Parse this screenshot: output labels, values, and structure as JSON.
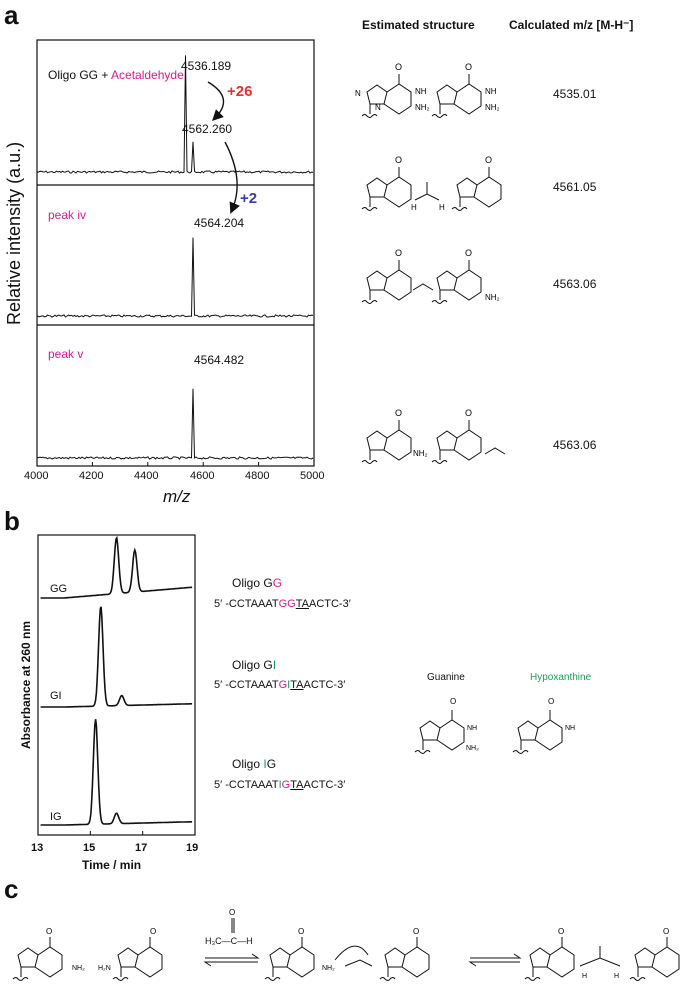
{
  "panel_a": {
    "letter": "a",
    "header_structure": "Estimated structure",
    "header_mz": "Calculated m/z [M-H⁻]",
    "ylabel": "Relative intensity (a.u.)",
    "xlabel": "m/z",
    "trace1_label_part1": "Oligo GG + ",
    "trace1_label_part2": "Acetaldehyde",
    "trace2_label": "peak iv",
    "trace3_label": "peak v",
    "peak1": "4536.189",
    "peak2": "4562.260",
    "peak3": "4564.204",
    "peak4": "4564.482",
    "delta1": "+26",
    "delta2": "+2",
    "calc": [
      "4535.01",
      "4561.05",
      "4563.06",
      "4563.06"
    ],
    "colors": {
      "magenta": "#e0198a",
      "red": "#e0332b",
      "blue": "#3d3aa8"
    }
  },
  "panel_b": {
    "letter": "b",
    "ylabel": "Absorbance at 260 nm",
    "xlabel": "Time / min",
    "trace_labels": [
      "GG",
      "GI",
      "IG"
    ],
    "oligo_titles": [
      {
        "pre": "Oligo G",
        "hi": "G",
        "post": ""
      },
      {
        "pre": "Oligo G",
        "hi": "I",
        "post": ""
      },
      {
        "pre": "Oligo ",
        "hi": "I",
        "post": "G"
      }
    ],
    "seqs": [
      {
        "pre": "5′ -CCTAAAT",
        "a": "G",
        "b": "G",
        "u": "TA",
        "post": "ACTC-3′"
      },
      {
        "pre": "5′ -CCTAAAT",
        "a": "G",
        "b": "I",
        "u": "TA",
        "post": "ACTC-3′"
      },
      {
        "pre": "5′ -CCTAAAT",
        "a": "I",
        "b": "G",
        "u": "TA",
        "post": "ACTC-3′"
      }
    ],
    "guanine_label": "Guanine",
    "hypoxanthine_label": "Hypoxanthine",
    "colors": {
      "magenta": "#e0198a",
      "green": "#16a05a"
    }
  },
  "panel_c": {
    "letter": "c",
    "reagent": "H₃C—C—H"
  },
  "chart_data": [
    {
      "type": "line",
      "title": "",
      "xlabel": "m/z",
      "ylabel": "Relative intensity (a.u.)",
      "xlim": [
        4000,
        5000
      ],
      "xticks": [
        "4000",
        "4200",
        "4400",
        "4600",
        "4800",
        "5000"
      ],
      "series": [
        {
          "name": "Oligo GG + Acetaldehyde",
          "x": [
            4536.189,
            4562.26
          ],
          "y": [
            1.0,
            0.35
          ]
        },
        {
          "name": "peak iv",
          "x": [
            4564.204
          ],
          "y": [
            1.0
          ]
        },
        {
          "name": "peak v",
          "x": [
            4564.482
          ],
          "y": [
            1.0
          ]
        }
      ]
    },
    {
      "type": "line",
      "title": "",
      "xlabel": "Time / min",
      "ylabel": "Absorbance at 260 nm",
      "xlim": [
        13,
        19
      ],
      "xticks": [
        "13",
        "15",
        "17",
        "19"
      ],
      "series": [
        {
          "name": "GG",
          "x": [
            16.0,
            16.7
          ],
          "y": [
            1.0,
            0.75
          ]
        },
        {
          "name": "GI",
          "x": [
            15.4,
            16.2
          ],
          "y": [
            1.0,
            0.1
          ]
        },
        {
          "name": "IG",
          "x": [
            15.2,
            16.0
          ],
          "y": [
            1.0,
            0.1
          ]
        }
      ]
    }
  ]
}
